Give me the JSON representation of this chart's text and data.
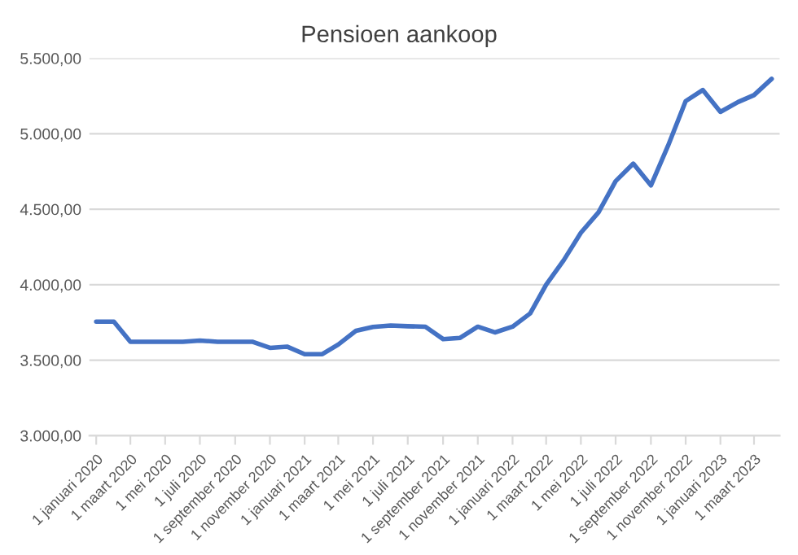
{
  "chart_data": {
    "type": "line",
    "title": "Pensioen aankoop",
    "x": [
      "2020-01",
      "2020-02",
      "2020-03",
      "2020-04",
      "2020-05",
      "2020-06",
      "2020-07",
      "2020-08",
      "2020-09",
      "2020-10",
      "2020-11",
      "2020-12",
      "2021-01",
      "2021-02",
      "2021-03",
      "2021-04",
      "2021-05",
      "2021-06",
      "2021-07",
      "2021-08",
      "2021-09",
      "2021-10",
      "2021-11",
      "2021-12",
      "2022-01",
      "2022-02",
      "2022-03",
      "2022-04",
      "2022-05",
      "2022-06",
      "2022-07",
      "2022-08",
      "2022-09",
      "2022-10",
      "2022-11",
      "2022-12",
      "2023-01",
      "2023-02",
      "2023-03",
      "2023-04"
    ],
    "series": [
      {
        "color": "#4472c4",
        "values": [
          3755,
          3755,
          3622,
          3622,
          3622,
          3622,
          3630,
          3622,
          3622,
          3622,
          3582,
          3590,
          3540,
          3540,
          3604,
          3695,
          3720,
          3730,
          3725,
          3722,
          3640,
          3648,
          3722,
          3684,
          3722,
          3810,
          4000,
          4163,
          4344,
          4480,
          4686,
          4802,
          4658,
          4920,
          5216,
          5290,
          5145,
          5210,
          5256,
          5364
        ]
      }
    ],
    "xlim": [
      "2019-12-20",
      "2023-04-15"
    ],
    "xticks": [
      {
        "value": "2020-01-01",
        "label": "1 januari 2020"
      },
      {
        "value": "2020-03-01",
        "label": "1 maart 2020"
      },
      {
        "value": "2020-05-01",
        "label": "1 mei 2020"
      },
      {
        "value": "2020-07-01",
        "label": "1 juli 2020"
      },
      {
        "value": "2020-09-01",
        "label": "1 september 2020"
      },
      {
        "value": "2020-11-01",
        "label": "1 november 2020"
      },
      {
        "value": "2021-01-01",
        "label": "1 januari 2021"
      },
      {
        "value": "2021-03-01",
        "label": "1 maart 2021"
      },
      {
        "value": "2021-05-01",
        "label": "1 mei 2021"
      },
      {
        "value": "2021-07-01",
        "label": "1 juli 2021"
      },
      {
        "value": "2021-09-01",
        "label": "1 september 2021"
      },
      {
        "value": "2021-11-01",
        "label": "1 november 2021"
      },
      {
        "value": "2022-01-01",
        "label": "1 januari 2022"
      },
      {
        "value": "2022-03-01",
        "label": "1 maart 2022"
      },
      {
        "value": "2022-05-01",
        "label": "1 mei 2022"
      },
      {
        "value": "2022-07-01",
        "label": "1 juli 2022"
      },
      {
        "value": "2022-09-01",
        "label": "1 september 2022"
      },
      {
        "value": "2022-11-01",
        "label": "1 november 2022"
      },
      {
        "value": "2023-01-01",
        "label": "1 januari 2023"
      },
      {
        "value": "2023-03-01",
        "label": "1 maart 2023"
      }
    ],
    "ylim": [
      3000,
      5500
    ],
    "yticks": [
      {
        "value": 3000,
        "label": "3.000,00"
      },
      {
        "value": 3500,
        "label": "3.500,00"
      },
      {
        "value": 4000,
        "label": "4.000,00"
      },
      {
        "value": 4500,
        "label": "4.500,00"
      },
      {
        "value": 5000,
        "label": "5.000,00"
      },
      {
        "value": 5500,
        "label": "5.500,00"
      }
    ],
    "grid": "y",
    "marker": "none",
    "line_style": "solid",
    "legend": false
  }
}
